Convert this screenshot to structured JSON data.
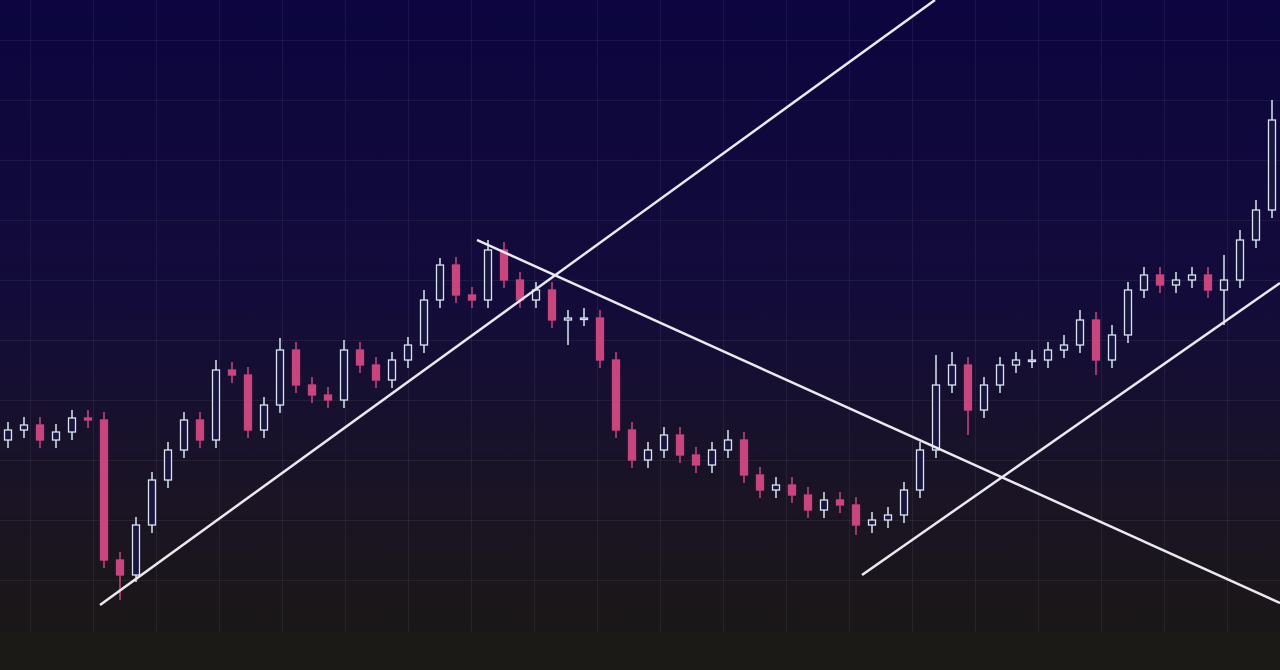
{
  "chart_data": {
    "type": "candlestick",
    "ylim": [
      0,
      670
    ],
    "up_color": "#d6e6f0",
    "down_color": "#c8457e",
    "open": [
      230,
      240,
      245,
      230,
      238,
      252,
      250,
      110,
      95,
      145,
      190,
      220,
      250,
      230,
      300,
      295,
      240,
      265,
      320,
      285,
      275,
      270,
      320,
      305,
      290,
      310,
      325,
      370,
      405,
      375,
      370,
      420,
      390,
      370,
      380,
      350,
      352,
      352,
      310,
      240,
      210,
      220,
      235,
      215,
      205,
      220,
      230,
      195,
      180,
      185,
      175,
      160,
      170,
      165,
      145,
      150,
      155,
      180,
      220,
      285,
      305,
      260,
      285,
      305,
      310,
      310,
      320,
      325,
      350,
      310,
      335,
      380,
      395,
      385,
      390,
      395,
      380,
      390,
      430,
      460
    ],
    "high": [
      248,
      253,
      253,
      246,
      260,
      260,
      258,
      118,
      153,
      198,
      228,
      258,
      258,
      310,
      308,
      303,
      273,
      332,
      328,
      293,
      283,
      330,
      328,
      313,
      318,
      333,
      380,
      412,
      413,
      383,
      430,
      428,
      398,
      388,
      388,
      360,
      362,
      360,
      318,
      248,
      228,
      243,
      243,
      223,
      228,
      240,
      238,
      203,
      193,
      193,
      183,
      178,
      178,
      173,
      158,
      163,
      188,
      228,
      315,
      318,
      313,
      293,
      313,
      318,
      320,
      328,
      335,
      360,
      358,
      345,
      388,
      403,
      403,
      398,
      403,
      403,
      415,
      440,
      470,
      570
    ],
    "low": [
      222,
      232,
      222,
      222,
      230,
      242,
      102,
      70,
      88,
      137,
      182,
      212,
      222,
      222,
      287,
      232,
      232,
      257,
      277,
      267,
      262,
      262,
      297,
      282,
      282,
      302,
      317,
      362,
      367,
      362,
      362,
      382,
      362,
      362,
      342,
      325,
      344,
      302,
      232,
      202,
      202,
      212,
      207,
      197,
      197,
      212,
      187,
      172,
      172,
      167,
      152,
      152,
      157,
      135,
      137,
      142,
      147,
      172,
      212,
      277,
      235,
      252,
      277,
      297,
      302,
      302,
      312,
      317,
      295,
      302,
      327,
      372,
      377,
      377,
      382,
      372,
      345,
      382,
      422,
      452
    ],
    "close": [
      240,
      245,
      230,
      238,
      252,
      250,
      110,
      95,
      145,
      190,
      220,
      250,
      230,
      300,
      295,
      240,
      265,
      320,
      285,
      275,
      270,
      320,
      305,
      290,
      310,
      325,
      370,
      405,
      375,
      370,
      420,
      390,
      370,
      380,
      350,
      352,
      352,
      310,
      240,
      210,
      220,
      235,
      215,
      205,
      220,
      230,
      195,
      180,
      185,
      175,
      160,
      170,
      165,
      145,
      150,
      155,
      180,
      220,
      285,
      305,
      260,
      285,
      305,
      310,
      310,
      320,
      325,
      350,
      310,
      335,
      380,
      395,
      385,
      390,
      395,
      380,
      390,
      430,
      460,
      550
    ]
  }
}
